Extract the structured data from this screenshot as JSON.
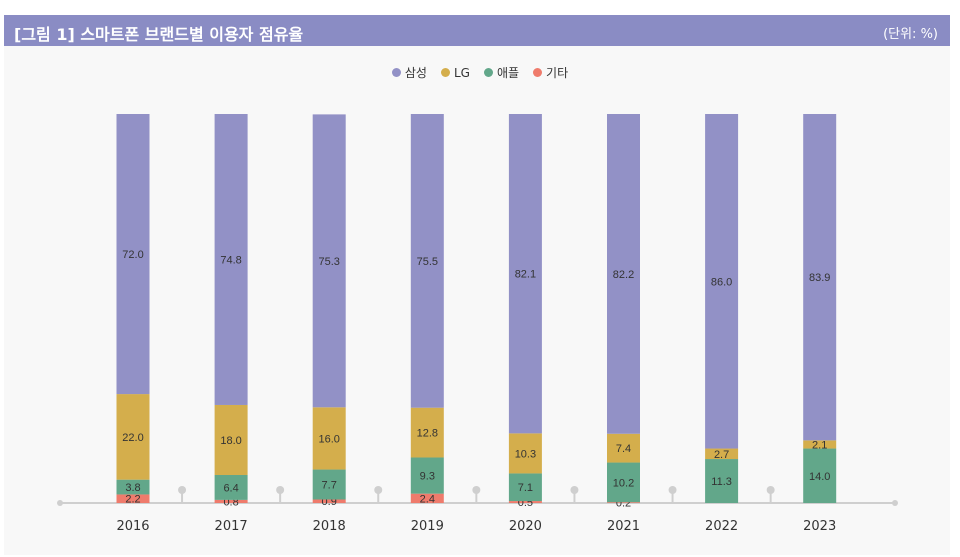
{
  "header": {
    "title": "[그림 1]  스마트폰 브랜드별 이용자 점유율",
    "unit": "(단위: %)"
  },
  "chart_data": {
    "type": "bar",
    "stacked": true,
    "categories": [
      "2016",
      "2017",
      "2018",
      "2019",
      "2020",
      "2021",
      "2022",
      "2023"
    ],
    "series": [
      {
        "name": "기타",
        "color": "#ef7b6c",
        "values": [
          2.2,
          0.8,
          0.9,
          2.4,
          0.5,
          0.2,
          null,
          null
        ]
      },
      {
        "name": "애플",
        "color": "#62a78a",
        "values": [
          3.8,
          6.4,
          7.7,
          9.3,
          7.1,
          10.2,
          11.3,
          14.0
        ]
      },
      {
        "name": "LG",
        "color": "#d4ae4c",
        "values": [
          22.0,
          18.0,
          16.0,
          12.8,
          10.3,
          7.4,
          2.7,
          2.1
        ]
      },
      {
        "name": "삼성",
        "color": "#9291c6",
        "values": [
          72.0,
          74.8,
          75.3,
          75.5,
          82.1,
          82.2,
          86.0,
          83.9
        ]
      }
    ],
    "legend_order": [
      "삼성",
      "LG",
      "애플",
      "기타"
    ],
    "ylim": [
      0,
      100
    ],
    "legend": "top-center",
    "grid": false
  }
}
